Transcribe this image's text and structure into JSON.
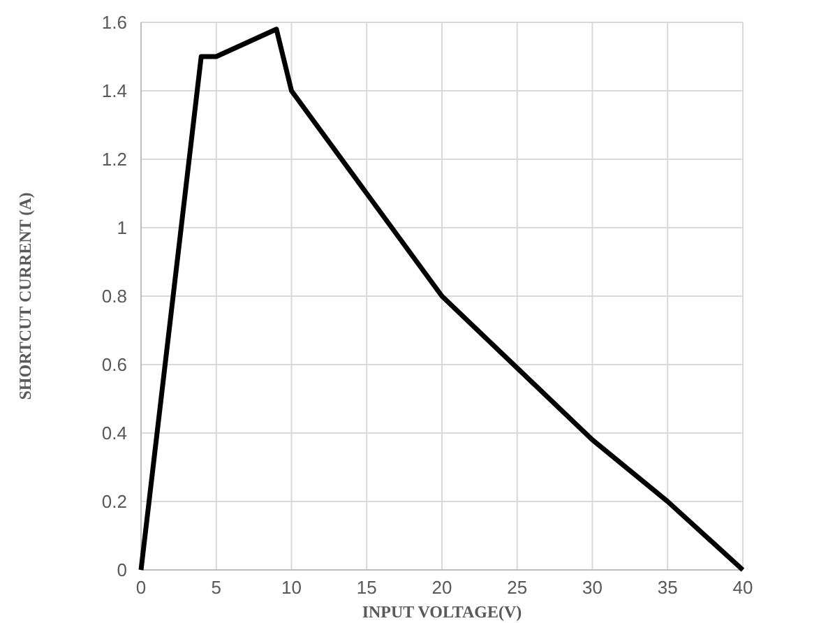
{
  "chart_data": {
    "type": "line",
    "xlabel": "INPUT VOLTAGE(V)",
    "ylabel": "SHORTCUT CURRENT (A)",
    "x": [
      0,
      4,
      5,
      9,
      10,
      15,
      20,
      25,
      30,
      35,
      40
    ],
    "series": [
      {
        "color": "#000000",
        "values": [
          0,
          1.5,
          1.5,
          1.58,
          1.4,
          1.1,
          0.8,
          0.59,
          0.38,
          0.2,
          0
        ]
      }
    ],
    "xlim": [
      0,
      40
    ],
    "xticks": [
      0,
      5,
      10,
      15,
      20,
      25,
      30,
      35,
      40
    ],
    "ylim": [
      0,
      1.6
    ],
    "yticks": [
      0,
      0.2,
      0.4,
      0.6,
      0.8,
      1,
      1.2,
      1.4,
      1.6
    ],
    "grid": true,
    "marker": "none",
    "line_style": "solid"
  }
}
